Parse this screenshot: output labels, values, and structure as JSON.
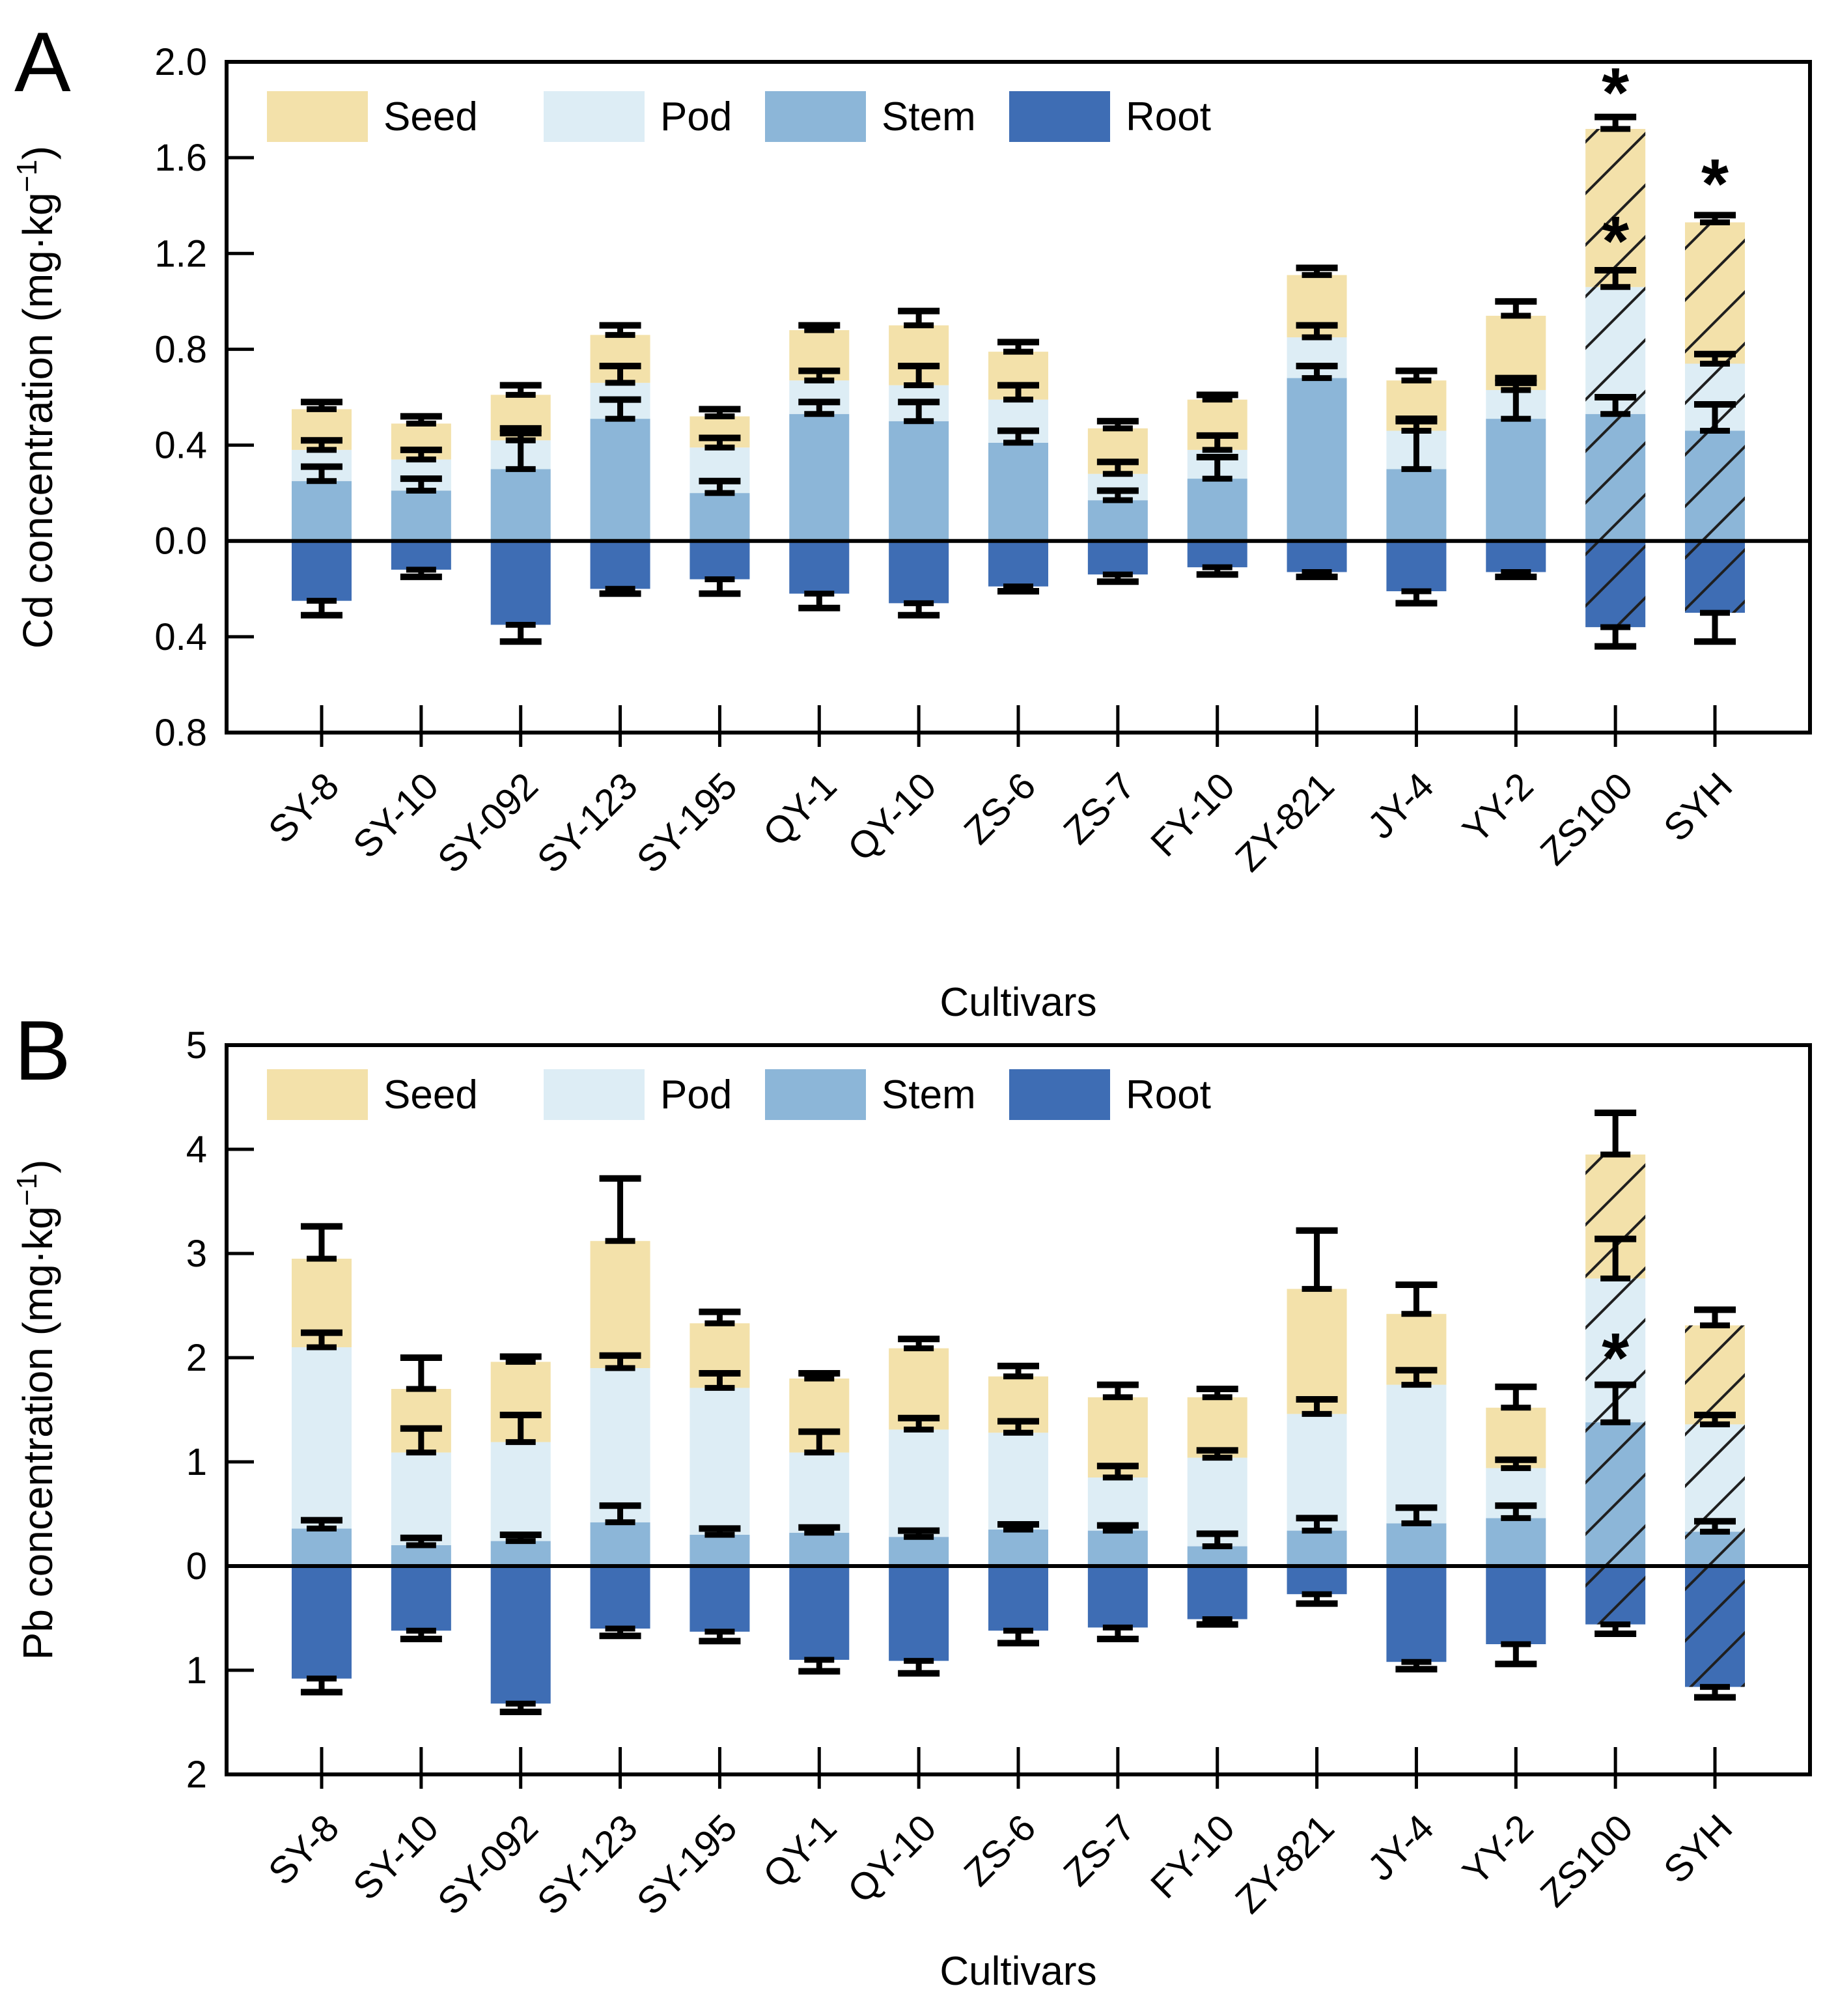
{
  "figure": {
    "background": "#ffffff",
    "axis_color": "#000000",
    "hatch_color": "#1f1f1f"
  },
  "chart_data": [
    {
      "type": "bar",
      "stacked": true,
      "panel_letter": "A",
      "ylabel_prefix": "Cd concentration (mg·kg",
      "ylabel_sup": "−1",
      "ylabel_suffix": ")",
      "xlabel": "Cultivars",
      "legend_position": "top-left-inside",
      "grid": false,
      "ylim": [
        -0.8,
        2.0
      ],
      "yticks": [
        {
          "v": 2.0,
          "label": "2.0"
        },
        {
          "v": 1.6,
          "label": "1.6"
        },
        {
          "v": 1.2,
          "label": "1.2"
        },
        {
          "v": 0.8,
          "label": "0.8"
        },
        {
          "v": 0.4,
          "label": "0.4"
        },
        {
          "v": 0.0,
          "label": "0.0"
        },
        {
          "v": -0.4,
          "label": "0.4"
        },
        {
          "v": -0.8,
          "label": "0.8"
        }
      ],
      "categories": [
        "SY-8",
        "SY-10",
        "SY-092",
        "SY-123",
        "SY-195",
        "QY-1",
        "QY-10",
        "ZS-6",
        "ZS-7",
        "FY-10",
        "ZY-821",
        "JY-4",
        "YY-2",
        "ZS100",
        "SYH"
      ],
      "legend": [
        "Seed",
        "Pod",
        "Stem",
        "Root"
      ],
      "colors": {
        "Seed": "#f3e1aa",
        "Pod": "#ddedf5",
        "Stem": "#8cb6d8",
        "Root": "#3e6db4"
      },
      "series": [
        {
          "name": "Stem",
          "values": [
            0.25,
            0.21,
            0.3,
            0.51,
            0.2,
            0.53,
            0.5,
            0.41,
            0.17,
            0.26,
            0.68,
            0.3,
            0.51,
            0.53,
            0.46
          ]
        },
        {
          "name": "Pod",
          "values": [
            0.13,
            0.13,
            0.12,
            0.15,
            0.19,
            0.14,
            0.15,
            0.18,
            0.11,
            0.12,
            0.17,
            0.16,
            0.12,
            0.53,
            0.28
          ]
        },
        {
          "name": "Seed",
          "values": [
            0.17,
            0.15,
            0.19,
            0.2,
            0.13,
            0.21,
            0.25,
            0.2,
            0.19,
            0.21,
            0.26,
            0.21,
            0.31,
            0.66,
            0.59
          ]
        },
        {
          "name": "Root",
          "values": [
            -0.25,
            -0.12,
            -0.35,
            -0.2,
            -0.16,
            -0.22,
            -0.26,
            -0.19,
            -0.14,
            -0.11,
            -0.13,
            -0.21,
            -0.13,
            -0.36,
            -0.3
          ]
        }
      ],
      "errors": {
        "Stem": [
          0.06,
          0.05,
          0.15,
          0.08,
          0.05,
          0.05,
          0.08,
          0.05,
          0.04,
          0.09,
          0.05,
          0.2,
          0.15,
          0.07,
          0.11
        ],
        "Pod": [
          0.04,
          0.04,
          0.05,
          0.07,
          0.04,
          0.04,
          0.08,
          0.06,
          0.05,
          0.06,
          0.05,
          0.05,
          0.05,
          0.07,
          0.04
        ],
        "Seed": [
          0.03,
          0.03,
          0.04,
          0.04,
          0.03,
          0.02,
          0.06,
          0.04,
          0.03,
          0.02,
          0.03,
          0.04,
          0.06,
          0.05,
          0.03
        ],
        "Root": [
          0.06,
          0.03,
          0.07,
          0.02,
          0.06,
          0.06,
          0.05,
          0.02,
          0.03,
          0.03,
          0.02,
          0.05,
          0.02,
          0.08,
          0.12
        ]
      },
      "hatched": [
        "ZS100",
        "SYH"
      ],
      "annotations": [
        {
          "category": "ZS100",
          "y": 1.88,
          "text": "*"
        },
        {
          "category": "ZS100",
          "y": 1.26,
          "text": "*"
        },
        {
          "category": "SYH",
          "y": 1.5,
          "text": "*"
        }
      ]
    },
    {
      "type": "bar",
      "stacked": true,
      "panel_letter": "B",
      "ylabel_prefix": "Pb concentration (mg·kg",
      "ylabel_sup": "−1",
      "ylabel_suffix": ")",
      "xlabel": "Cultivars",
      "legend_position": "top-left-inside",
      "grid": false,
      "ylim": [
        -2,
        5
      ],
      "yticks": [
        {
          "v": 5,
          "label": "5"
        },
        {
          "v": 4,
          "label": "4"
        },
        {
          "v": 3,
          "label": "3"
        },
        {
          "v": 2,
          "label": "2"
        },
        {
          "v": 1,
          "label": "1"
        },
        {
          "v": 0,
          "label": "0"
        },
        {
          "v": -1,
          "label": "1"
        },
        {
          "v": -2,
          "label": "2"
        }
      ],
      "categories": [
        "SY-8",
        "SY-10",
        "SY-092",
        "SY-123",
        "SY-195",
        "QY-1",
        "QY-10",
        "ZS-6",
        "ZS-7",
        "FY-10",
        "ZY-821",
        "JY-4",
        "YY-2",
        "ZS100",
        "SYH"
      ],
      "legend": [
        "Seed",
        "Pod",
        "Stem",
        "Root"
      ],
      "colors": {
        "Seed": "#f3e1aa",
        "Pod": "#ddedf5",
        "Stem": "#8cb6d8",
        "Root": "#3e6db4"
      },
      "series": [
        {
          "name": "Stem",
          "values": [
            0.36,
            0.2,
            0.24,
            0.42,
            0.3,
            0.32,
            0.28,
            0.35,
            0.34,
            0.19,
            0.34,
            0.41,
            0.46,
            1.38,
            0.33
          ]
        },
        {
          "name": "Pod",
          "values": [
            1.74,
            0.89,
            0.95,
            1.48,
            1.41,
            0.77,
            1.03,
            0.93,
            0.51,
            0.85,
            1.12,
            1.33,
            0.48,
            1.38,
            1.03
          ]
        },
        {
          "name": "Seed",
          "values": [
            0.85,
            0.61,
            0.77,
            1.22,
            0.62,
            0.71,
            0.78,
            0.54,
            0.77,
            0.58,
            1.2,
            0.68,
            0.58,
            1.19,
            0.95
          ]
        },
        {
          "name": "Root",
          "values": [
            -1.08,
            -0.62,
            -1.32,
            -0.6,
            -0.63,
            -0.9,
            -0.91,
            -0.62,
            -0.59,
            -0.51,
            -0.27,
            -0.92,
            -0.75,
            -0.56,
            -1.16
          ]
        }
      ],
      "errors": {
        "Stem": [
          0.08,
          0.07,
          0.06,
          0.16,
          0.06,
          0.05,
          0.06,
          0.05,
          0.05,
          0.12,
          0.12,
          0.15,
          0.12,
          0.36,
          0.1
        ],
        "Pod": [
          0.14,
          0.23,
          0.26,
          0.12,
          0.14,
          0.2,
          0.11,
          0.11,
          0.11,
          0.07,
          0.14,
          0.14,
          0.08,
          0.38,
          0.09
        ],
        "Seed": [
          0.31,
          0.3,
          0.05,
          0.6,
          0.11,
          0.05,
          0.09,
          0.1,
          0.12,
          0.08,
          0.56,
          0.28,
          0.2,
          0.4,
          0.15
        ],
        "Root": [
          0.13,
          0.08,
          0.08,
          0.07,
          0.09,
          0.11,
          0.12,
          0.12,
          0.11,
          0.05,
          0.09,
          0.07,
          0.19,
          0.09,
          0.1
        ]
      },
      "hatched": [
        "ZS100",
        "SYH"
      ],
      "annotations": [
        {
          "category": "ZS100",
          "y": 2.02,
          "text": "*"
        }
      ]
    }
  ]
}
